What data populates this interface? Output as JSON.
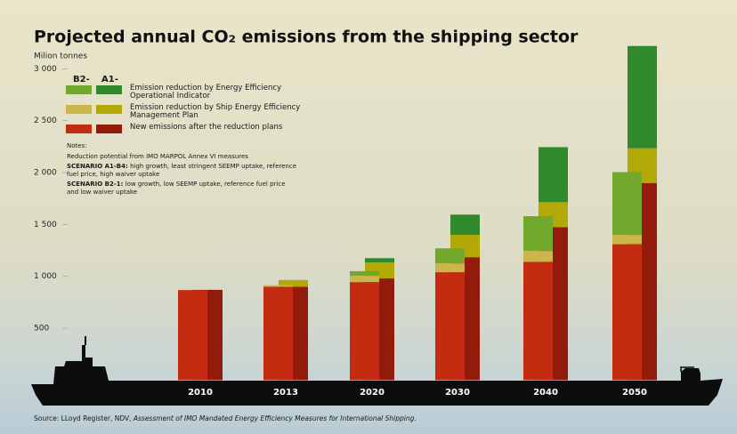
{
  "chart_data": {
    "type": "stacked-bar-pair",
    "title": "Projected annual CO₂ emissions from the shipping sector",
    "y_label": "Milion tonnes",
    "categories": [
      "2010",
      "2013",
      "2020",
      "2030",
      "2040",
      "2050"
    ],
    "ylim": [
      0,
      3250
    ],
    "yticks": [
      500,
      {
        "value": 1000,
        "label": "1 000"
      },
      {
        "value": 1500,
        "label": "1 500"
      },
      {
        "value": 2000,
        "label": "2 000"
      },
      {
        "value": 2500,
        "label": "2 500"
      },
      {
        "value": 3000,
        "label": "3 000"
      }
    ],
    "grid": false,
    "stack_names": [
      "New emissions after the reduction plans",
      "Emission reduction by Ship Energy Efficiency Management Plan",
      "Emission reduction by Energy Efficiency Operational Indicator"
    ],
    "series": [
      {
        "name": "B2-1",
        "stack": [
          {
            "color": "#c42c12",
            "values": [
              868,
              900,
              945,
              1040,
              1140,
              1310
            ]
          },
          {
            "color": "#cbb64c",
            "values": [
              0,
              15,
              60,
              85,
              105,
              90
            ]
          },
          {
            "color": "#72a82c",
            "values": [
              0,
              0,
              45,
              145,
              335,
              605
            ]
          }
        ]
      },
      {
        "name": "A1-B4",
        "stack": [
          {
            "color": "#921b0b",
            "values": [
              870,
              900,
              980,
              1185,
              1475,
              1900
            ]
          },
          {
            "color": "#b2a806",
            "values": [
              0,
              65,
              155,
              215,
              240,
              335
            ]
          },
          {
            "color": "#308a2b",
            "values": [
              0,
              0,
              40,
              195,
              530,
              985
            ]
          }
        ]
      }
    ],
    "notes": {
      "heading": "Notes:",
      "line": "Reduction potential from IMO MARPOL Annex VI  measures",
      "scenarios": [
        {
          "label": "SCENARIO A1-B4:",
          "text": "high growth, least stringent SEEMP uptake, reference fuel price, high waiver uptake"
        },
        {
          "label": "SCENARIO B2-1:",
          "text": "low growth, low SEEMP uptake, reference fuel price and low waiver uptake"
        }
      ]
    },
    "source": {
      "prefix": "Source: LLoyd Register, NDV,",
      "title": "Assessment of IMO Mandated Energy Efficiency Measures for International Shipping."
    }
  }
}
